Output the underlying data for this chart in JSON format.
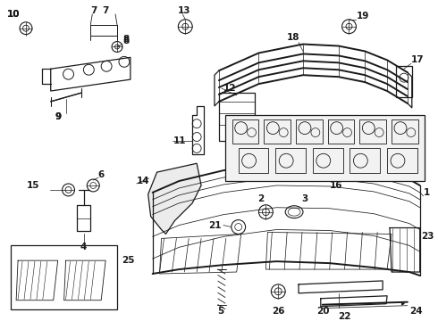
{
  "bg_color": "#ffffff",
  "line_color": "#1a1a1a",
  "font_size": 7.5,
  "lw_main": 0.9,
  "lw_thick": 1.4,
  "lw_thin": 0.55
}
